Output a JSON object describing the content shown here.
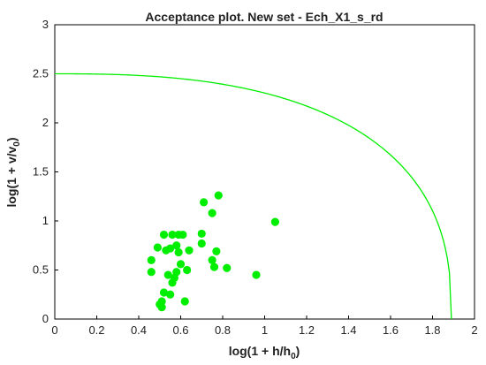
{
  "chart_data": {
    "type": "scatter",
    "title": "Acceptance plot. New set - Ech_X1_s_rd",
    "xlabel": "log(1 + h/h",
    "xlabel_sub": "0",
    "xlabel_end": ")",
    "ylabel": "log(1 + v/v",
    "ylabel_sub": "0",
    "ylabel_end": ")",
    "xlim": [
      0,
      2
    ],
    "ylim": [
      0,
      3
    ],
    "x_ticks": [
      "0",
      "0.2",
      "0.4",
      "0.6",
      "0.8",
      "1",
      "1.2",
      "1.4",
      "1.6",
      "1.8",
      "2"
    ],
    "y_ticks": [
      "0",
      "0.5",
      "1",
      "1.5",
      "2",
      "2.5",
      "3"
    ],
    "grid": false,
    "point_color": "#00ee00",
    "curve_color": "#00ee00",
    "curve": {
      "type": "elliptical-boundary",
      "x_intercept": 1.89,
      "y_intercept": 2.5,
      "exponent": 2.6
    },
    "points": [
      {
        "x": 0.46,
        "y": 0.6
      },
      {
        "x": 0.46,
        "y": 0.48
      },
      {
        "x": 0.49,
        "y": 0.73
      },
      {
        "x": 0.5,
        "y": 0.15
      },
      {
        "x": 0.51,
        "y": 0.12
      },
      {
        "x": 0.51,
        "y": 0.18
      },
      {
        "x": 0.52,
        "y": 0.27
      },
      {
        "x": 0.52,
        "y": 0.86
      },
      {
        "x": 0.53,
        "y": 0.7
      },
      {
        "x": 0.54,
        "y": 0.45
      },
      {
        "x": 0.55,
        "y": 0.25
      },
      {
        "x": 0.55,
        "y": 0.72
      },
      {
        "x": 0.56,
        "y": 0.37
      },
      {
        "x": 0.56,
        "y": 0.86
      },
      {
        "x": 0.57,
        "y": 0.42
      },
      {
        "x": 0.58,
        "y": 0.48
      },
      {
        "x": 0.58,
        "y": 0.75
      },
      {
        "x": 0.59,
        "y": 0.68
      },
      {
        "x": 0.59,
        "y": 0.86
      },
      {
        "x": 0.6,
        "y": 0.56
      },
      {
        "x": 0.61,
        "y": 0.86
      },
      {
        "x": 0.62,
        "y": 0.18
      },
      {
        "x": 0.63,
        "y": 0.5
      },
      {
        "x": 0.64,
        "y": 0.7
      },
      {
        "x": 0.7,
        "y": 0.87
      },
      {
        "x": 0.7,
        "y": 0.77
      },
      {
        "x": 0.71,
        "y": 1.19
      },
      {
        "x": 0.75,
        "y": 1.08
      },
      {
        "x": 0.75,
        "y": 0.6
      },
      {
        "x": 0.76,
        "y": 0.53
      },
      {
        "x": 0.77,
        "y": 0.69
      },
      {
        "x": 0.78,
        "y": 1.26
      },
      {
        "x": 0.82,
        "y": 0.52
      },
      {
        "x": 0.96,
        "y": 0.45
      },
      {
        "x": 1.05,
        "y": 0.99
      }
    ]
  }
}
